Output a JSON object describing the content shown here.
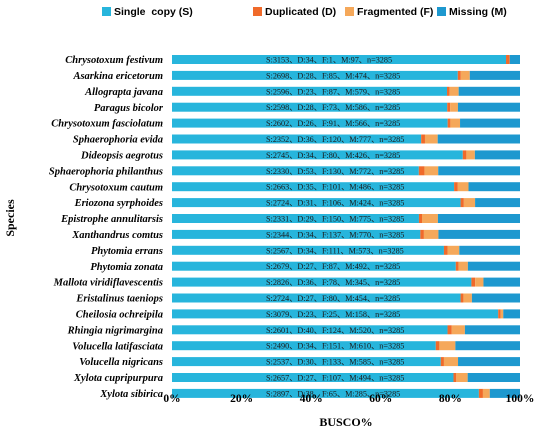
{
  "chart_data": {
    "type": "bar",
    "orientation": "horizontal",
    "stacked": true,
    "xlabel": "BUSCO%",
    "ylabel": "Species",
    "xlim": [
      0,
      100
    ],
    "x_ticks": [
      "0%",
      "20%",
      "40%",
      "60%",
      "80%",
      "100%"
    ],
    "legend_position": "top",
    "total_buscos": 3285,
    "series": [
      {
        "name": "Single  copy (S)",
        "key": "S",
        "color": "#27b5dc"
      },
      {
        "name": "Duplicated (D)",
        "key": "D",
        "color": "#f06a2a"
      },
      {
        "name": "Fragmented (F)",
        "key": "F",
        "color": "#f5a85a"
      },
      {
        "name": "Missing (M)",
        "key": "M",
        "color": "#1d98cf"
      }
    ],
    "categories": [
      "Chrysotoxum festivum",
      "Asarkina ericetorum",
      "Allograpta javana",
      "Paragus bicolor",
      "Chrysotoxum fasciolatum",
      "Sphaerophoria evida",
      "Dideopsis aegrotus",
      "Sphaerophoria philanthus",
      "Chrysotoxum cautum",
      "Eriozona syrphoides",
      "Epistrophe annulitarsis",
      "Xanthandrus comtus",
      "Phytomia errans",
      "Phytomia zonata",
      "Mallota viridiflavescentis",
      "Eristalinus taeniops",
      "Cheilosia ochreipila",
      "Rhingia nigrimargina",
      "Volucella latifasciata",
      "Volucella nigricans",
      "Xylota cupripurpura",
      "Xylota sibirica"
    ],
    "values": [
      {
        "S": 3153,
        "D": 34,
        "F": 1,
        "M": 97
      },
      {
        "S": 2698,
        "D": 28,
        "F": 85,
        "M": 474
      },
      {
        "S": 2596,
        "D": 23,
        "F": 87,
        "M": 579
      },
      {
        "S": 2598,
        "D": 28,
        "F": 73,
        "M": 586
      },
      {
        "S": 2602,
        "D": 26,
        "F": 91,
        "M": 566
      },
      {
        "S": 2352,
        "D": 36,
        "F": 120,
        "M": 777
      },
      {
        "S": 2745,
        "D": 34,
        "F": 80,
        "M": 426
      },
      {
        "S": 2330,
        "D": 53,
        "F": 130,
        "M": 772
      },
      {
        "S": 2663,
        "D": 35,
        "F": 101,
        "M": 486
      },
      {
        "S": 2724,
        "D": 31,
        "F": 106,
        "M": 424
      },
      {
        "S": 2331,
        "D": 29,
        "F": 150,
        "M": 775
      },
      {
        "S": 2344,
        "D": 34,
        "F": 137,
        "M": 770
      },
      {
        "S": 2567,
        "D": 34,
        "F": 111,
        "M": 573
      },
      {
        "S": 2679,
        "D": 27,
        "F": 87,
        "M": 492
      },
      {
        "S": 2826,
        "D": 36,
        "F": 78,
        "M": 345
      },
      {
        "S": 2724,
        "D": 27,
        "F": 80,
        "M": 454
      },
      {
        "S": 3079,
        "D": 23,
        "F": 25,
        "M": 158
      },
      {
        "S": 2601,
        "D": 40,
        "F": 124,
        "M": 520
      },
      {
        "S": 2490,
        "D": 34,
        "F": 151,
        "M": 610
      },
      {
        "S": 2537,
        "D": 30,
        "F": 133,
        "M": 585
      },
      {
        "S": 2657,
        "D": 27,
        "F": 107,
        "M": 494
      },
      {
        "S": 2897,
        "D": 38,
        "F": 65,
        "M": 285
      }
    ],
    "annotations": [
      "S:3153、D:34、F:1、M:97、n=3285",
      "S:2698、D:28、F:85、M:474、n=3285",
      "S:2596、D:23、F:87、M:579、n=3285",
      "S:2598、D:28、F:73、M:586、n=3285",
      "S:2602、D:26、F:91、M:566、n=3285",
      "S:2352、D:36、F:120、M:777、n=3285",
      "S:2745、D:34、F:80、M:426、n=3285",
      "S:2330、D:53、F:130、M:772、n=3285",
      "S:2663、D:35、F:101、M:486、n=3285",
      "S:2724、D:31、F:106、M:424、n=3285",
      "S:2331、D:29、F:150、M:775、n=3285",
      "S:2344、D:34、F:137、M:770、n=3285",
      "S:2567、D:34、F:111、M:573、n=3285",
      "S:2679、D:27、F:87、M:492、n=3285",
      "S:2826、D:36、F:78、M:345、n=3285",
      "S:2724、D:27、F:80、M:454、n=3285",
      "S:3079、D:23、F:25、M:158、n=3285",
      "S:2601、D:40、F:124、M:520、n=3285",
      "S:2490、D:34、F:151、M:610、n=3285",
      "S:2537、D:30、F:133、M:585、n=3285",
      "S:2657、D:27、F:107、M:494、n=3285",
      "S:2897、D:38、F:65、M:285、n=3285"
    ]
  }
}
